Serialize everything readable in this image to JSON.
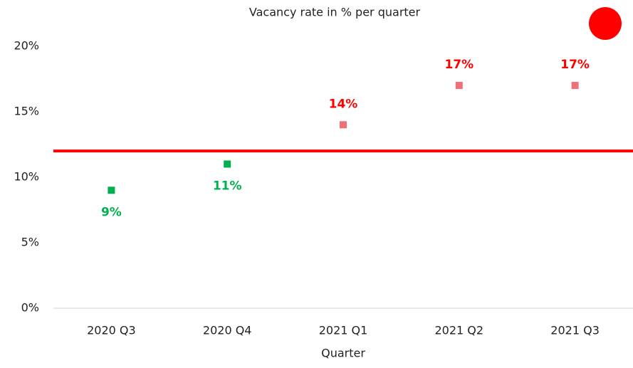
{
  "chart_data": {
    "type": "scatter",
    "title": "Vacancy rate in % per quarter",
    "x_label": "Quarter",
    "categories": [
      "2020 Q3",
      "2020 Q4",
      "2021 Q1",
      "2021 Q2",
      "2021 Q3"
    ],
    "values": [
      9,
      11,
      14,
      17,
      17
    ],
    "value_labels": [
      "9%",
      "11%",
      "14%",
      "17%",
      "17%"
    ],
    "colors": [
      "#00b050",
      "#00b050",
      "#f07078",
      "#f07078",
      "#f07078"
    ],
    "label_colors": [
      "#00b050",
      "#00b050",
      "#ff0000",
      "#ff0000",
      "#ff0000"
    ],
    "threshold": {
      "value": 12,
      "color": "#ff0000"
    },
    "ylim": [
      0,
      22
    ],
    "yticks": [
      {
        "value": 0,
        "label": "0%"
      },
      {
        "value": 5,
        "label": "5%"
      },
      {
        "value": 10,
        "label": "10%"
      },
      {
        "value": 15,
        "label": "15%"
      },
      {
        "value": 20,
        "label": "20%"
      }
    ],
    "grid": false
  }
}
